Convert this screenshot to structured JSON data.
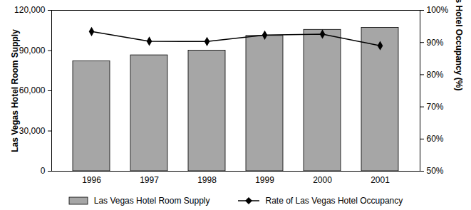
{
  "chart_data": {
    "type": "bar",
    "categories": [
      "1996",
      "1997",
      "1998",
      "1999",
      "2000",
      "2001"
    ],
    "series": [
      {
        "name": "Las Vegas Hotel Room Supply",
        "type": "bar",
        "color": "#a6a6a6",
        "values": [
          82000,
          86500,
          90000,
          101000,
          105500,
          107000
        ]
      },
      {
        "name": "Rate of Las Vegas Hotel Occupancy",
        "type": "line",
        "axis": "y2",
        "color": "#000000",
        "marker": "diamond",
        "values": [
          93.4,
          90.4,
          90.3,
          92.3,
          92.6,
          89.0
        ]
      }
    ],
    "ylabel": "Las Vegas Hotel Room Supply",
    "y2label": "Rate of Las Vegas Hotel Occupancy (%)",
    "ylim": [
      0,
      120000
    ],
    "yticks": [
      0,
      {
        "value": 30000,
        "label": "30,000"
      },
      {
        "value": 60000,
        "label": "60,000"
      },
      {
        "value": 90000,
        "label": "90,000"
      },
      {
        "value": 120000,
        "label": "120,000"
      }
    ],
    "y2lim": [
      50,
      100
    ],
    "y2ticks": [
      {
        "value": 50,
        "label": "50%"
      },
      {
        "value": 60,
        "label": "60%"
      },
      {
        "value": 70,
        "label": "70%"
      },
      {
        "value": 80,
        "label": "80%"
      },
      {
        "value": 90,
        "label": "90%"
      },
      {
        "value": 100,
        "label": "100%"
      }
    ],
    "grid": false,
    "legend": "bottom"
  }
}
